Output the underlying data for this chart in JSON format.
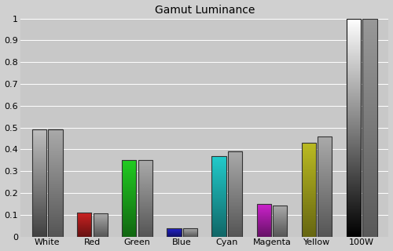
{
  "title": "Gamut Luminance",
  "categories": [
    "White",
    "Red",
    "Green",
    "Blue",
    "Cyan",
    "Magenta",
    "Yellow",
    "100W"
  ],
  "measured": [
    0.493,
    0.11,
    0.352,
    0.038,
    0.37,
    0.15,
    0.43,
    1.0
  ],
  "reference": [
    0.493,
    0.106,
    0.352,
    0.038,
    0.392,
    0.141,
    0.46,
    1.0
  ],
  "bar_colors_top": [
    "#c0c0c0",
    "#cc2222",
    "#22cc22",
    "#2222cc",
    "#22cccc",
    "#cc22cc",
    "#bbbb22",
    "#ffffff"
  ],
  "bar_colors_bottom": [
    "#404040",
    "#661111",
    "#116611",
    "#111166",
    "#116666",
    "#661166",
    "#666611",
    "#000000"
  ],
  "ref_color_top": "#aaaaaa",
  "ref_color_bottom": "#555555",
  "ylim": [
    0,
    1.0
  ],
  "yticks": [
    0.0,
    0.1,
    0.2,
    0.3,
    0.4,
    0.5,
    0.6,
    0.7,
    0.8,
    0.9,
    1.0
  ],
  "ytick_labels": [
    "0",
    "0.1",
    "0.2",
    "0.3",
    "0.4",
    "0.5",
    "0.6",
    "0.7",
    "0.8",
    "0.9",
    "1"
  ],
  "bg_color": "#d0d0d0",
  "plot_bg": "#c8c8c8",
  "title_fontsize": 10,
  "tick_fontsize": 8,
  "bar_width": 0.32,
  "bar_gap": 0.04
}
